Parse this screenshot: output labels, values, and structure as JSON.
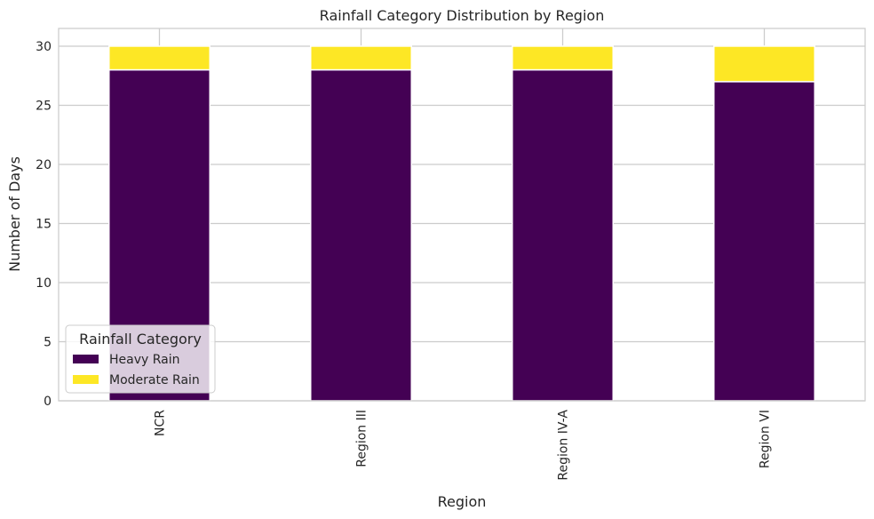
{
  "chart_data": {
    "type": "bar",
    "stacked": true,
    "title": "Rainfall Category Distribution by Region",
    "xlabel": "Region",
    "ylabel": "Number of Days",
    "categories": [
      "NCR",
      "Region III",
      "Region IV-A",
      "Region VI"
    ],
    "series": [
      {
        "name": "Heavy Rain",
        "values": [
          28,
          28,
          28,
          27
        ],
        "color": "#440154"
      },
      {
        "name": "Moderate Rain",
        "values": [
          2,
          2,
          2,
          3
        ],
        "color": "#fde725"
      }
    ],
    "ylim": [
      0,
      31.5
    ],
    "yticks": [
      0,
      5,
      10,
      15,
      20,
      25,
      30
    ],
    "grid": true,
    "legend": {
      "title": "Rainfall Category",
      "placement": "lower-left"
    },
    "colors": {
      "grid": "#cccccc",
      "axes_border": "#cccccc",
      "background": "#ffffff"
    }
  }
}
